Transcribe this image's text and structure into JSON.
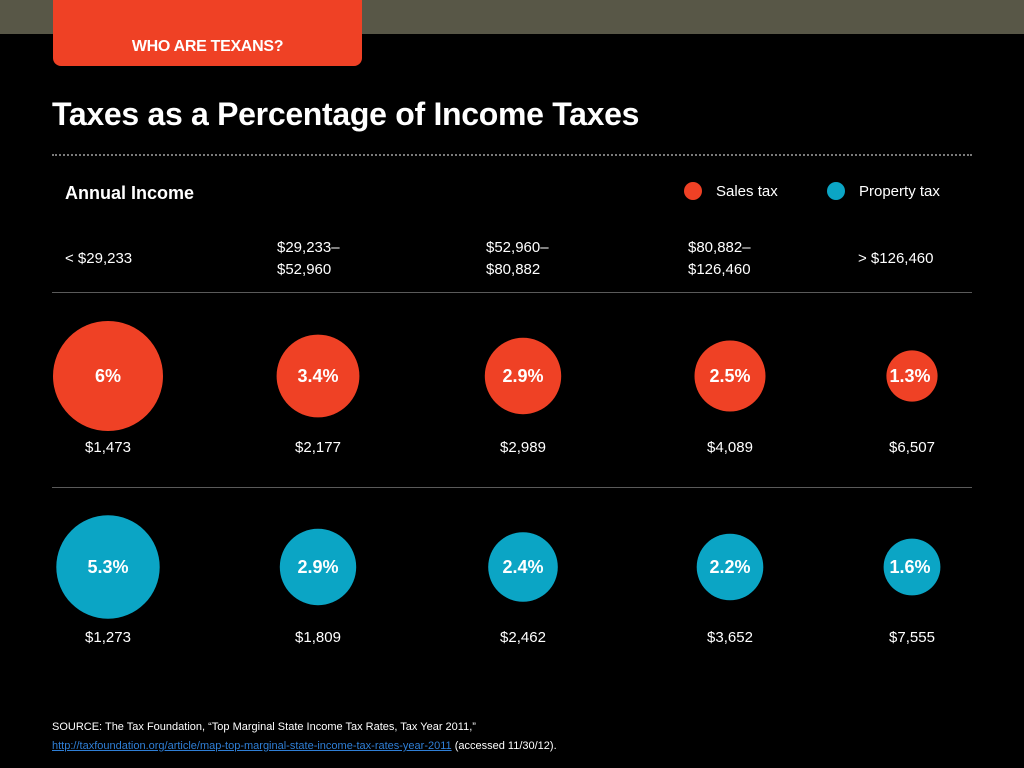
{
  "header": {
    "section_label": "WHO ARE TEXANS?",
    "title": "Taxes as a Percentage of Income Taxes"
  },
  "colors": {
    "sales": "#ef4125",
    "property": "#0ba5c5",
    "section_tab": "#ef4125",
    "top_band": "#585747"
  },
  "chart_data": {
    "type": "bubble",
    "xlabel": "Annual Income",
    "categories": [
      "< $29,233",
      "$29,233– $52,960",
      "$52,960– $80,882",
      "$80,882– $126,460",
      "> $126,460"
    ],
    "category_lines": [
      [
        "< $29,233"
      ],
      [
        "$29,233–",
        "$52,960"
      ],
      [
        "$52,960–",
        "$80,882"
      ],
      [
        "$80,882–",
        "$126,460"
      ],
      [
        "> $126,460"
      ]
    ],
    "legend_position": "top-right",
    "series": [
      {
        "name": "Sales tax",
        "color": "#ef4125",
        "values": [
          6,
          3.4,
          2.9,
          2.5,
          1.3
        ],
        "labels": [
          "6%",
          "3.4%",
          "2.9%",
          "2.5%",
          "1.3%"
        ],
        "amounts": [
          "$1,473",
          "$2,177",
          "$2,989",
          "$4,089",
          "$6,507"
        ]
      },
      {
        "name": "Property tax",
        "color": "#0ba5c5",
        "values": [
          5.3,
          2.9,
          2.4,
          2.2,
          1.6
        ],
        "labels": [
          "5.3%",
          "2.9%",
          "2.4%",
          "2.2%",
          "1.6%"
        ],
        "amounts": [
          "$1,273",
          "$1,809",
          "$2,462",
          "$3,652",
          "$7,555"
        ]
      }
    ]
  },
  "source": {
    "text": "SOURCE:  The Tax Foundation, “Top Marginal State Income Tax Rates, Tax  Year 2011,”",
    "link": "http://taxfoundation.org/article/map-top-marginal-state-income-tax-rates-year-2011",
    "accessed": "(accessed 11/30/12)."
  }
}
